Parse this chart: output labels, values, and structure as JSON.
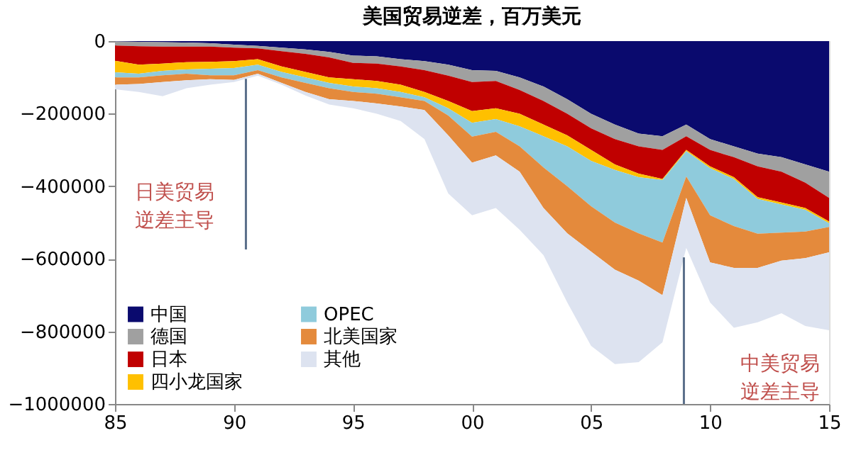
{
  "chart_data": {
    "type": "area",
    "stacked": true,
    "title": "美国贸易逆差，百万美元",
    "x": [
      1985,
      1986,
      1987,
      1988,
      1989,
      1990,
      1991,
      1992,
      1993,
      1994,
      1995,
      1996,
      1997,
      1998,
      1999,
      2000,
      2001,
      2002,
      2003,
      2004,
      2005,
      2006,
      2007,
      2008,
      2009,
      2010,
      2011,
      2012,
      2013,
      2014,
      2015
    ],
    "xlim": [
      1985,
      2015
    ],
    "xticks": [
      {
        "value": 1985,
        "label": "85"
      },
      {
        "value": 1990,
        "label": "90"
      },
      {
        "value": 1995,
        "label": "95"
      },
      {
        "value": 2000,
        "label": "00"
      },
      {
        "value": 2005,
        "label": "05"
      },
      {
        "value": 2010,
        "label": "10"
      },
      {
        "value": 2015,
        "label": "15"
      }
    ],
    "ylim": [
      -1000000,
      0
    ],
    "yticks": [
      -1000000,
      -800000,
      -600000,
      -400000,
      -200000,
      0
    ],
    "grid": false,
    "legend": "bottom left",
    "series": [
      {
        "name": "中国",
        "color": "#0a0a6e",
        "values": [
          -1000,
          -2000,
          -3000,
          -4000,
          -6000,
          -10000,
          -13000,
          -18000,
          -23000,
          -30000,
          -40000,
          -42000,
          -50000,
          -55000,
          -65000,
          -80000,
          -82000,
          -100000,
          -125000,
          -160000,
          -200000,
          -230000,
          -255000,
          -262000,
          -230000,
          -270000,
          -290000,
          -310000,
          -320000,
          -340000,
          -360000
        ]
      },
      {
        "name": "德国",
        "color": "#a0a0a0",
        "values": [
          -11000,
          -12000,
          -12000,
          -11000,
          -9000,
          -8000,
          -7000,
          -10000,
          -12000,
          -15000,
          -20000,
          -20000,
          -20000,
          -25000,
          -30000,
          -33000,
          -28000,
          -35000,
          -40000,
          -40000,
          -40000,
          -40000,
          -35000,
          -38000,
          -32000,
          -30000,
          -30000,
          -35000,
          -40000,
          -50000,
          -72000
        ]
      },
      {
        "name": "日本",
        "color": "#c00000",
        "values": [
          -42000,
          -51000,
          -47000,
          -43000,
          -42000,
          -37000,
          -30000,
          -42000,
          -50000,
          -55000,
          -45000,
          -48000,
          -50000,
          -60000,
          -70000,
          -80000,
          -75000,
          -65000,
          -65000,
          -60000,
          -60000,
          -70000,
          -75000,
          -80000,
          -38000,
          -45000,
          -55000,
          -85000,
          -85000,
          -70000,
          -65000
        ]
      },
      {
        "name": "四小龙国家",
        "color": "#ffc000",
        "values": [
          -32000,
          -25000,
          -20000,
          -20000,
          -19000,
          -19000,
          -15000,
          -15000,
          -15000,
          -15000,
          -20000,
          -20000,
          -20000,
          -15000,
          -20000,
          -32000,
          -30000,
          -35000,
          -32000,
          -30000,
          -30000,
          -15000,
          -10000,
          -3000,
          -3000,
          -5000,
          -5000,
          -5000,
          -5000,
          -5000,
          -5000
        ]
      },
      {
        "name": "OPEC",
        "color": "#8fcbdc",
        "values": [
          -14000,
          -10000,
          -12000,
          -12000,
          -18000,
          -20000,
          -15000,
          -15000,
          -15000,
          -15000,
          -15000,
          -15000,
          -15000,
          -10000,
          -20000,
          -38000,
          -35000,
          -55000,
          -86000,
          -110000,
          -125000,
          -145000,
          -155000,
          -172000,
          -70000,
          -130000,
          -130000,
          -96000,
          -78000,
          -60000,
          -10000
        ]
      },
      {
        "name": "北美国家",
        "color": "#e48a3c",
        "values": [
          -20000,
          -18000,
          -19000,
          -18000,
          -11000,
          -13000,
          -10000,
          -15000,
          -25000,
          -30000,
          -25000,
          -27000,
          -25000,
          -25000,
          -55000,
          -72000,
          -65000,
          -70000,
          -112000,
          -130000,
          -125000,
          -130000,
          -130000,
          -145000,
          -59000,
          -130000,
          -115000,
          -94000,
          -77000,
          -73000,
          -70000
        ]
      },
      {
        "name": "其他",
        "color": "#dde3f0",
        "values": [
          -13000,
          -22000,
          -39000,
          -22000,
          -15000,
          -6000,
          -5000,
          -5000,
          -10000,
          -15000,
          -20000,
          -28000,
          -40000,
          -80000,
          -160000,
          -145000,
          -145000,
          -160000,
          -130000,
          -190000,
          -260000,
          -260000,
          -225000,
          -130000,
          -138000,
          -110000,
          -165000,
          -150000,
          -145000,
          -187000,
          -215000
        ]
      }
    ],
    "ref_lines": [
      {
        "axis": "x",
        "value": 1990.5,
        "label": "日美贸易逆差主导",
        "color": "#5a6f8a"
      },
      {
        "axis": "x",
        "value": 2008.9,
        "label": "中美贸易逆差主导",
        "color": "#5a6f8a"
      }
    ]
  }
}
